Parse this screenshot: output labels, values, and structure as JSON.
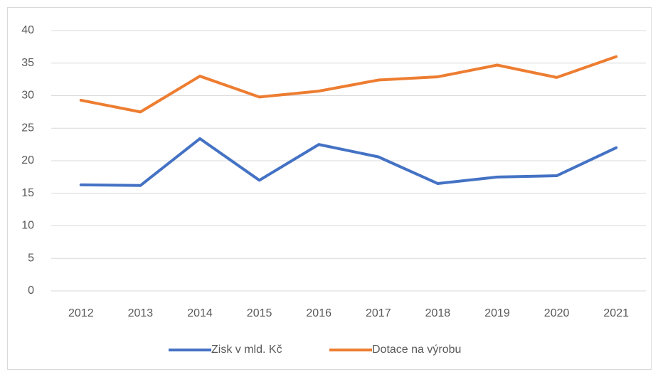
{
  "chart_data": {
    "type": "line",
    "categories": [
      "2012",
      "2013",
      "2014",
      "2015",
      "2016",
      "2017",
      "2018",
      "2019",
      "2020",
      "2021"
    ],
    "series": [
      {
        "name": "Zisk v mld. Kč",
        "color": "#4472c4",
        "values": [
          16.3,
          16.2,
          23.4,
          17.0,
          22.5,
          20.6,
          16.5,
          17.5,
          17.7,
          22.0
        ]
      },
      {
        "name": "Dotace na výrobu",
        "color": "#ed7d31",
        "values": [
          29.3,
          27.5,
          33.0,
          29.8,
          30.7,
          32.4,
          32.9,
          34.7,
          32.8,
          36.0
        ]
      }
    ],
    "ylim": [
      0,
      40
    ],
    "yticks": [
      0,
      5,
      10,
      15,
      20,
      25,
      30,
      35,
      40
    ],
    "grid": true,
    "legend": "bottom"
  }
}
